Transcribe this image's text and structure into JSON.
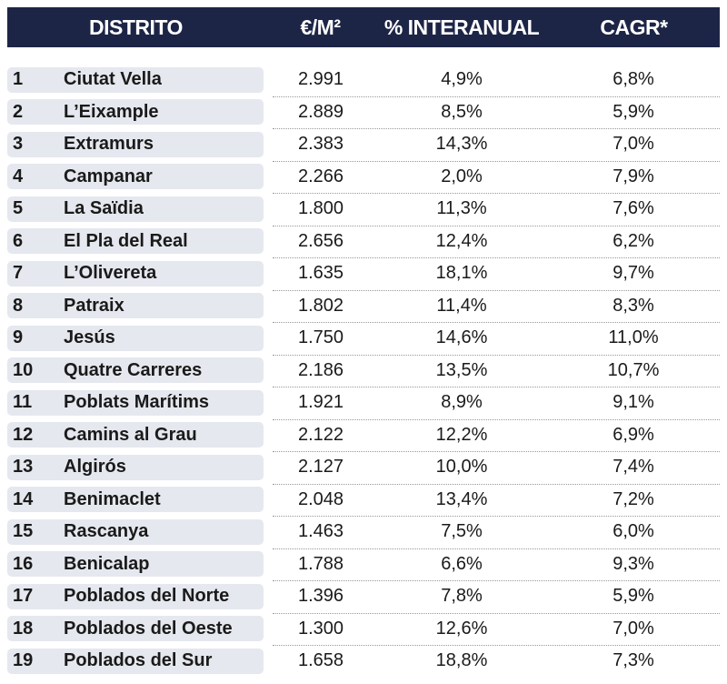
{
  "table": {
    "headers": [
      "DISTRITO",
      "€/M²",
      "% INTERANUAL",
      "CAGR*"
    ],
    "rows": [
      [
        "1",
        "Ciutat Vella",
        "2.991",
        "4,9%",
        "6,8%"
      ],
      [
        "2",
        "L’Eixample",
        "2.889",
        "8,5%",
        "5,9%"
      ],
      [
        "3",
        "Extramurs",
        "2.383",
        "14,3%",
        "7,0%"
      ],
      [
        "4",
        "Campanar",
        "2.266",
        "2,0%",
        "7,9%"
      ],
      [
        "5",
        "La Saïdia",
        "1.800",
        "11,3%",
        "7,6%"
      ],
      [
        "6",
        "El Pla del Real",
        "2.656",
        "12,4%",
        "6,2%"
      ],
      [
        "7",
        "L’Olivereta",
        "1.635",
        "18,1%",
        "9,7%"
      ],
      [
        "8",
        "Patraix",
        "1.802",
        "11,4%",
        "8,3%"
      ],
      [
        "9",
        "Jesús",
        "1.750",
        "14,6%",
        "11,0%"
      ],
      [
        "10",
        "Quatre Carreres",
        "2.186",
        "13,5%",
        "10,7%"
      ],
      [
        "11",
        "Poblats Marítims",
        "1.921",
        "8,9%",
        "9,1%"
      ],
      [
        "12",
        "Camins al Grau",
        "2.122",
        "12,2%",
        "6,9%"
      ],
      [
        "13",
        "Algirós",
        "2.127",
        "10,0%",
        "7,4%"
      ],
      [
        "14",
        "Benimaclet",
        "2.048",
        "13,4%",
        "7,2%"
      ],
      [
        "15",
        "Rascanya",
        "1.463",
        "7,5%",
        "6,0%"
      ],
      [
        "16",
        "Benicalap",
        "1.788",
        "6,6%",
        "9,3%"
      ],
      [
        "17",
        "Poblados del Norte",
        "1.396",
        "7,8%",
        "5,9%"
      ],
      [
        "18",
        "Poblados del Oeste",
        "1.300",
        "12,6%",
        "7,0%"
      ],
      [
        "19",
        "Poblados del Sur",
        "1.658",
        "18,8%",
        "7,3%"
      ]
    ]
  }
}
